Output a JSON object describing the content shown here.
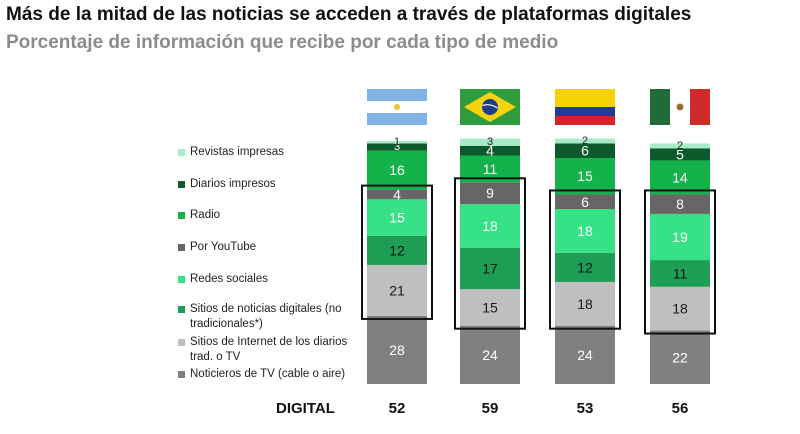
{
  "header": {
    "title": "Más de la mitad de las noticias se acceden a través de plataformas digitales",
    "subtitle": "Porcentaje de información que recibe por cada tipo de medio"
  },
  "countries": [
    {
      "flag": "argentina-flag"
    },
    {
      "flag": "brazil-flag"
    },
    {
      "flag": "colombia-flag"
    },
    {
      "flag": "mexico-flag"
    }
  ],
  "footer": {
    "digital_label": "DIGITAL",
    "totals": [
      "52",
      "59",
      "53",
      "56"
    ]
  },
  "chart_data": {
    "type": "bar",
    "stacked": true,
    "title": "Más de la mitad de las noticias se acceden a través de plataformas digitales",
    "subtitle": "Porcentaje de información que recibe por cada tipo de medio",
    "categories": [
      "Argentina",
      "Brasil",
      "Colombia",
      "México"
    ],
    "series": [
      {
        "name": "Noticieros de TV (cable o aire)",
        "color": "#808080",
        "text_color": "#ffffff",
        "values": [
          28,
          24,
          24,
          22
        ]
      },
      {
        "name": "Sitios de Internet de los diarios trad. o  TV",
        "color": "#bfbfbf",
        "text_color": "#1a1a1a",
        "values": [
          21,
          15,
          18,
          18
        ]
      },
      {
        "name": "Sitios de noticias digitales (no tradicionales*)",
        "color": "#1e9e55",
        "text_color": "#111111",
        "values": [
          12,
          17,
          12,
          11
        ]
      },
      {
        "name": "Redes sociales",
        "color": "#36e285",
        "text_color": "#ffffff",
        "values": [
          15,
          18,
          18,
          19
        ]
      },
      {
        "name": "Por YouTube",
        "color": "#666666",
        "text_color": "#ffffff",
        "values": [
          4,
          9,
          6,
          8
        ]
      },
      {
        "name": "Radio",
        "color": "#13b24b",
        "text_color": "#ffffff",
        "values": [
          16,
          11,
          15,
          14
        ]
      },
      {
        "name": "Diarios impresos",
        "color": "#0c5a2c",
        "text_color": "#ffffff",
        "values": [
          3,
          4,
          6,
          5
        ]
      },
      {
        "name": "Revistas impresas",
        "color": "#a8ebc8",
        "text_color": "#222222",
        "values": [
          1,
          3,
          2,
          2
        ]
      }
    ],
    "highlight_series": [
      "Sitios de Internet de los diarios trad. o  TV",
      "Sitios de noticias digitales (no tradicionales*)",
      "Redes sociales",
      "Por YouTube"
    ],
    "legend_position": "left",
    "xlabel": "",
    "ylabel": "",
    "ylim": [
      0,
      100
    ]
  }
}
